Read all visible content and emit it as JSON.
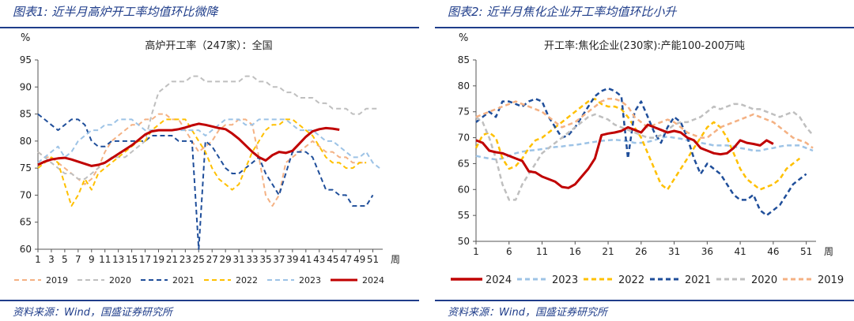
{
  "page": {
    "left_header": "图表1:  近半月高炉开工率均值环比微降",
    "right_header": "图表2:  近半月焦化企业开工率均值环比小升",
    "left_source": "资料来源：Wind，国盛证券研究所",
    "right_source": "资料来源：Wind，国盛证券研究所",
    "colors": {
      "header": "#1f3d8a"
    }
  },
  "chart_data": [
    {
      "type": "line",
      "title": "高炉开工率（247家）：全国",
      "ylabel": "%",
      "xlabel": "周",
      "ylim": [
        60,
        95
      ],
      "yticks": [
        60,
        65,
        70,
        75,
        80,
        85,
        90,
        95
      ],
      "xlim": [
        1,
        52
      ],
      "xticks": [
        1,
        3,
        5,
        7,
        9,
        11,
        13,
        15,
        17,
        19,
        21,
        23,
        25,
        27,
        29,
        31,
        33,
        35,
        37,
        39,
        41,
        43,
        45,
        47,
        49,
        51
      ],
      "series": [
        {
          "name": "2019",
          "color": "#f4b183",
          "dash": "6,4",
          "width": 2,
          "values": [
            78,
            77,
            77,
            76,
            75,
            74,
            73,
            72,
            73,
            75,
            78,
            80,
            81,
            82,
            83,
            83,
            84,
            84,
            85,
            85,
            84,
            84,
            82,
            80,
            78,
            79,
            80,
            82,
            83,
            83,
            84,
            84,
            83,
            77,
            70,
            68,
            70,
            76,
            77,
            78,
            79,
            80,
            79,
            78,
            78,
            77,
            77,
            76,
            76,
            76
          ]
        },
        {
          "name": "2020",
          "color": "#bfbfbf",
          "dash": "6,4",
          "width": 2,
          "values": [
            78,
            77,
            76,
            75,
            74,
            74,
            73,
            73,
            74,
            75,
            76,
            77,
            77,
            77,
            78,
            79,
            80,
            85,
            89,
            90,
            91,
            91,
            91,
            92,
            92,
            91,
            91,
            91,
            91,
            91,
            91,
            92,
            92,
            91,
            91,
            90,
            90,
            89,
            89,
            88,
            88,
            88,
            87,
            87,
            86,
            86,
            86,
            85,
            85,
            86,
            86,
            86
          ]
        },
        {
          "name": "2021",
          "color": "#1f4e9a",
          "dash": "6,4",
          "width": 2,
          "values": [
            85,
            84,
            83,
            82,
            83,
            84,
            84,
            83,
            80,
            79,
            79,
            80,
            80,
            80,
            80,
            80,
            80,
            81,
            81,
            81,
            81,
            80,
            80,
            80,
            60,
            80,
            79,
            77,
            75,
            74,
            74,
            75,
            76,
            77,
            74,
            72,
            70,
            74,
            78,
            78,
            78,
            77,
            74,
            71,
            71,
            70,
            70,
            68,
            68,
            68,
            70
          ]
        },
        {
          "name": "2022",
          "color": "#ffc000",
          "dash": "6,4",
          "width": 2,
          "values": [
            75,
            76,
            77,
            76,
            72,
            68,
            70,
            73,
            71,
            74,
            75,
            76,
            77,
            78,
            79,
            80,
            80,
            82,
            83,
            84,
            84,
            84,
            84,
            82,
            80,
            78,
            75,
            73,
            72,
            71,
            72,
            75,
            78,
            80,
            82,
            83,
            83,
            84,
            84,
            83,
            82,
            81,
            79,
            77,
            76,
            76,
            75,
            75,
            76,
            76
          ]
        },
        {
          "name": "2023",
          "color": "#9dc3e6",
          "dash": "6,4",
          "width": 2,
          "values": [
            76,
            77,
            78,
            79,
            77,
            78,
            80,
            81,
            82,
            82,
            83,
            83,
            84,
            84,
            84,
            83,
            82,
            82,
            82,
            82,
            82,
            82,
            82,
            82,
            82,
            81,
            82,
            83,
            84,
            84,
            84,
            83,
            83,
            84,
            84,
            84,
            84,
            84,
            83,
            82,
            82,
            82,
            81,
            80,
            80,
            79,
            78,
            77,
            77,
            78,
            76,
            75
          ]
        },
        {
          "name": "2024",
          "color": "#c00000",
          "dash": "",
          "width": 3,
          "values": [
            75.6,
            76.2,
            76.6,
            76.8,
            76.9,
            76.6,
            76.2,
            75.8,
            75.4,
            75.6,
            76.0,
            76.8,
            77.6,
            78.4,
            79.2,
            80.2,
            81.2,
            81.8,
            82.0,
            82.0,
            82.0,
            82.2,
            82.5,
            82.9,
            83.2,
            83.0,
            82.7,
            82.4,
            82.2,
            81.4,
            80.4,
            79.2,
            78.0,
            77.0,
            76.4,
            77.4,
            78.0,
            77.8,
            78.2,
            79.5,
            80.8,
            81.8,
            82.2,
            82.4,
            82.3,
            82.1
          ]
        }
      ]
    },
    {
      "type": "line",
      "title": "开工率:焦化企业(230家):产能100-200万吨",
      "ylabel": "%",
      "xlabel": "周",
      "ylim": [
        50,
        85
      ],
      "yticks": [
        50,
        55,
        60,
        65,
        70,
        75,
        80,
        85
      ],
      "xlim": [
        1,
        52
      ],
      "xticks": [
        1,
        6,
        11,
        16,
        21,
        26,
        31,
        36,
        41,
        46,
        51
      ],
      "series": [
        {
          "name": "2024",
          "color": "#c00000",
          "dash": "",
          "width": 3,
          "values": [
            69.5,
            69.0,
            67.5,
            67.2,
            67.0,
            66.5,
            66.0,
            65.5,
            63.5,
            63.3,
            62.5,
            62.0,
            61.5,
            60.5,
            60.3,
            61.0,
            62.5,
            64.0,
            66.0,
            70.5,
            70.8,
            71.0,
            71.3,
            72.0,
            71.5,
            71.0,
            72.5,
            72.0,
            71.5,
            71.0,
            71.3,
            71.0,
            70.0,
            69.5,
            68.0,
            67.5,
            67.0,
            66.8,
            67.0,
            68.0,
            69.5,
            69.0,
            68.8,
            68.5,
            69.5,
            68.8
          ]
        },
        {
          "name": "2023",
          "color": "#9dc3e6",
          "dash": "6,4",
          "width": 2.5,
          "values": [
            66.5,
            66.2,
            66.0,
            65.8,
            66.0,
            66.5,
            67.0,
            67.3,
            67.5,
            67.6,
            67.8,
            68.0,
            68.2,
            68.3,
            68.5,
            68.6,
            68.8,
            69.0,
            69.2,
            69.4,
            69.5,
            69.6,
            69.5,
            69.3,
            69.0,
            69.0,
            69.2,
            69.5,
            70.0,
            70.2,
            70.0,
            69.8,
            69.5,
            69.3,
            69.0,
            68.8,
            68.5,
            68.5,
            68.5,
            68.3,
            68.0,
            67.8,
            67.5,
            67.5,
            67.8,
            68.0,
            68.3,
            68.5,
            68.5,
            68.5,
            68.0,
            67.5
          ]
        },
        {
          "name": "2022",
          "color": "#ffc000",
          "dash": "6,4",
          "width": 2.5,
          "values": [
            68.0,
            70.5,
            71.0,
            70.0,
            66.0,
            64.0,
            64.5,
            66.0,
            68.0,
            69.5,
            70.0,
            71.0,
            72.0,
            73.0,
            74.0,
            75.0,
            76.0,
            77.0,
            77.5,
            76.5,
            76.0,
            76.0,
            75.5,
            74.0,
            72.0,
            70.0,
            67.0,
            64.0,
            61.0,
            60.0,
            62.0,
            64.0,
            66.0,
            68.0,
            70.0,
            72.0,
            73.0,
            72.0,
            70.0,
            67.0,
            64.0,
            62.0,
            61.0,
            60.0,
            60.5,
            61.0,
            62.0,
            64.0,
            65.0,
            66.0
          ]
        },
        {
          "name": "2021",
          "color": "#1f4e9a",
          "dash": "6,4",
          "width": 2.5,
          "values": [
            73.0,
            74.0,
            75.0,
            74.0,
            77.0,
            77.0,
            76.5,
            76.0,
            77.0,
            77.5,
            77.0,
            74.0,
            72.0,
            70.0,
            70.5,
            72.0,
            74.0,
            76.0,
            78.0,
            79.0,
            79.5,
            79.0,
            78.0,
            66.0,
            75.0,
            77.0,
            74.0,
            71.0,
            69.0,
            72.0,
            74.0,
            73.0,
            70.0,
            66.0,
            63.0,
            65.0,
            64.0,
            63.0,
            61.0,
            59.0,
            58.0,
            58.0,
            59.0,
            56.0,
            55.0,
            56.0,
            57.0,
            59.0,
            61.0,
            62.0,
            63.0
          ]
        },
        {
          "name": "2020",
          "color": "#bfbfbf",
          "dash": "6,4",
          "width": 2.5,
          "values": [
            74.0,
            73.0,
            70.0,
            66.0,
            61.0,
            58.0,
            58.0,
            61.0,
            63.0,
            65.0,
            67.0,
            68.0,
            69.0,
            70.0,
            71.0,
            72.0,
            73.0,
            74.0,
            74.5,
            74.0,
            73.5,
            72.5,
            72.0,
            71.5,
            71.0,
            70.5,
            70.0,
            70.0,
            70.5,
            71.5,
            72.5,
            73.0,
            73.0,
            73.5,
            74.0,
            75.0,
            76.0,
            75.5,
            76.0,
            76.5,
            76.5,
            76.0,
            75.5,
            75.5,
            75.0,
            74.5,
            74.0,
            74.5,
            75.0,
            74.0,
            72.0,
            70.5
          ]
        },
        {
          "name": "2019",
          "color": "#f4b183",
          "dash": "6,4",
          "width": 2.5,
          "values": [
            74.0,
            74.5,
            75.0,
            75.5,
            76.0,
            76.5,
            77.0,
            76.5,
            76.0,
            75.5,
            75.0,
            74.0,
            73.0,
            72.0,
            72.5,
            73.0,
            74.0,
            75.0,
            76.0,
            77.0,
            77.5,
            77.5,
            77.0,
            76.0,
            74.0,
            73.0,
            72.0,
            72.5,
            73.0,
            73.5,
            73.0,
            72.0,
            71.0,
            70.5,
            70.0,
            70.0,
            71.0,
            72.0,
            72.5,
            73.0,
            73.5,
            74.0,
            74.5,
            74.0,
            73.5,
            73.0,
            72.0,
            71.0,
            70.0,
            69.5,
            69.0,
            68.0
          ]
        }
      ]
    }
  ]
}
